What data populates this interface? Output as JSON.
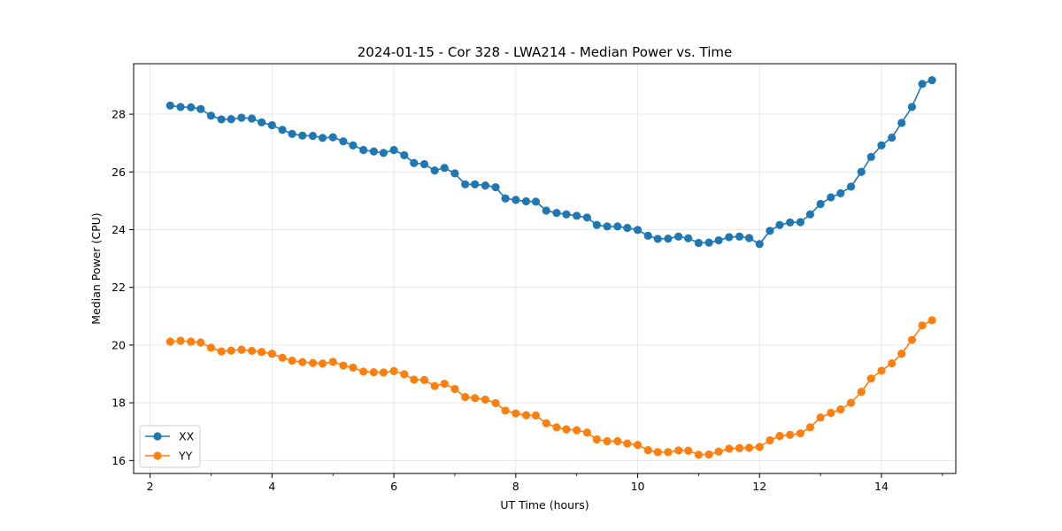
{
  "chart_data": {
    "type": "line",
    "title": "2024-01-15 - Cor 328 - LWA214 - Median Power vs. Time",
    "xlabel": "UT Time (hours)",
    "ylabel": "Median Power (CPU)",
    "xlim": [
      1.73,
      15.22
    ],
    "ylim": [
      15.55,
      29.75
    ],
    "xticks": [
      2,
      4,
      6,
      8,
      10,
      12,
      14
    ],
    "yticks": [
      16,
      18,
      20,
      22,
      24,
      26,
      28
    ],
    "xtick_labels": [
      "2",
      "4",
      "6",
      "8",
      "10",
      "12",
      "14"
    ],
    "ytick_labels": [
      "16",
      "18",
      "20",
      "22",
      "24",
      "26",
      "28"
    ],
    "grid": true,
    "legend_placement": "lower-left",
    "x": [
      2.33,
      2.5,
      2.67,
      2.83,
      3.0,
      3.17,
      3.33,
      3.5,
      3.67,
      3.83,
      4.0,
      4.17,
      4.33,
      4.5,
      4.67,
      4.83,
      5.0,
      5.17,
      5.33,
      5.5,
      5.67,
      5.83,
      6.0,
      6.17,
      6.33,
      6.5,
      6.67,
      6.83,
      7.0,
      7.17,
      7.33,
      7.5,
      7.67,
      7.83,
      8.0,
      8.17,
      8.33,
      8.5,
      8.67,
      8.83,
      9.0,
      9.17,
      9.33,
      9.5,
      9.67,
      9.83,
      10.0,
      10.17,
      10.33,
      10.5,
      10.67,
      10.83,
      11.0,
      11.17,
      11.33,
      11.5,
      11.67,
      11.83,
      12.0,
      12.17,
      12.33,
      12.5,
      12.67,
      12.83,
      13.0,
      13.17,
      13.33,
      13.5,
      13.67,
      13.83,
      14.0,
      14.17,
      14.33,
      14.5,
      14.67,
      14.83
    ],
    "series": [
      {
        "name": "XX",
        "color": "#1f77b4",
        "values": [
          28.3,
          28.25,
          28.24,
          28.18,
          27.95,
          27.82,
          27.83,
          27.88,
          27.85,
          27.72,
          27.62,
          27.46,
          27.32,
          27.26,
          27.25,
          27.18,
          27.2,
          27.06,
          26.92,
          26.76,
          26.71,
          26.66,
          26.76,
          26.58,
          26.31,
          26.27,
          26.05,
          26.14,
          25.95,
          25.57,
          25.57,
          25.53,
          25.47,
          25.08,
          25.03,
          24.98,
          24.97,
          24.66,
          24.58,
          24.53,
          24.48,
          24.42,
          24.16,
          24.11,
          24.11,
          24.06,
          23.99,
          23.79,
          23.68,
          23.69,
          23.76,
          23.7,
          23.54,
          23.55,
          23.63,
          23.74,
          23.76,
          23.71,
          23.5,
          23.96,
          24.16,
          24.25,
          24.26,
          24.53,
          24.89,
          25.12,
          25.26,
          25.49,
          26.0,
          26.52,
          26.92,
          27.19,
          27.7,
          28.25,
          29.05,
          29.18
        ]
      },
      {
        "name": "YY",
        "color": "#ff7f0e",
        "values": [
          20.12,
          20.15,
          20.12,
          20.09,
          19.91,
          19.78,
          19.81,
          19.84,
          19.8,
          19.76,
          19.7,
          19.56,
          19.46,
          19.41,
          19.38,
          19.36,
          19.42,
          19.29,
          19.22,
          19.08,
          19.06,
          19.05,
          19.1,
          18.99,
          18.8,
          18.79,
          18.58,
          18.66,
          18.48,
          18.2,
          18.16,
          18.11,
          17.99,
          17.73,
          17.63,
          17.57,
          17.56,
          17.29,
          17.15,
          17.08,
          17.05,
          16.97,
          16.73,
          16.67,
          16.67,
          16.59,
          16.54,
          16.36,
          16.29,
          16.29,
          16.35,
          16.34,
          16.2,
          16.21,
          16.31,
          16.41,
          16.43,
          16.44,
          16.47,
          16.7,
          16.85,
          16.89,
          16.94,
          17.15,
          17.49,
          17.65,
          17.77,
          18.0,
          18.38,
          18.84,
          19.11,
          19.37,
          19.7,
          20.18,
          20.68,
          20.86
        ]
      }
    ]
  }
}
